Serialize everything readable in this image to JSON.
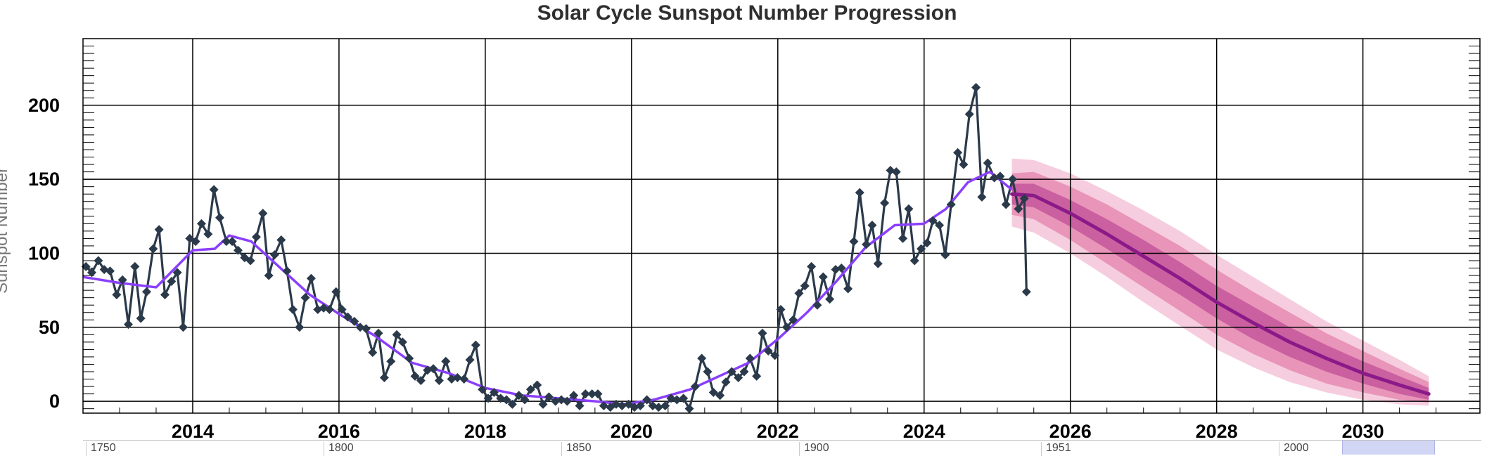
{
  "chart_data": {
    "type": "line",
    "title": "Solar Cycle Sunspot Number Progression",
    "xlabel": "",
    "ylabel": "Sunspot Number",
    "xlim": [
      2012.5,
      2031.6
    ],
    "ylim": [
      -8,
      245
    ],
    "x_ticks": [
      2014,
      2016,
      2018,
      2020,
      2022,
      2024,
      2026,
      2028,
      2030
    ],
    "y_ticks": [
      0,
      50,
      100,
      150,
      200
    ],
    "grid": true,
    "colors": {
      "monthly": "#2b3a4a",
      "smoothed": "#8a3ffc",
      "predicted": "#8b1a89",
      "band_inner": "#c4579a",
      "band_mid": "#e58bb3",
      "band_outer": "#f4c4d8",
      "navigator_window": "#d2d6f5"
    },
    "series": [
      {
        "values": [
          [
            2012.54,
            91
          ],
          [
            2012.62,
            87
          ],
          [
            2012.71,
            95
          ],
          [
            2012.79,
            89
          ],
          [
            2012.87,
            88
          ],
          [
            2012.96,
            72
          ],
          [
            2013.04,
            82
          ],
          [
            2013.12,
            52
          ],
          [
            2013.21,
            91
          ],
          [
            2013.29,
            56
          ],
          [
            2013.37,
            74
          ],
          [
            2013.46,
            103
          ],
          [
            2013.54,
            116
          ],
          [
            2013.62,
            72
          ],
          [
            2013.71,
            81
          ],
          [
            2013.79,
            87
          ],
          [
            2013.87,
            50
          ],
          [
            2013.96,
            110
          ],
          [
            2014.04,
            108
          ],
          [
            2014.12,
            120
          ],
          [
            2014.21,
            113
          ],
          [
            2014.29,
            143
          ],
          [
            2014.37,
            124
          ],
          [
            2014.46,
            108
          ],
          [
            2014.54,
            108
          ],
          [
            2014.62,
            102
          ],
          [
            2014.71,
            97
          ],
          [
            2014.79,
            95
          ],
          [
            2014.87,
            111
          ],
          [
            2014.96,
            127
          ],
          [
            2015.04,
            85
          ],
          [
            2015.12,
            99
          ],
          [
            2015.21,
            109
          ],
          [
            2015.29,
            88
          ],
          [
            2015.37,
            62
          ],
          [
            2015.46,
            50
          ],
          [
            2015.54,
            70
          ],
          [
            2015.62,
            83
          ],
          [
            2015.71,
            62
          ],
          [
            2015.79,
            63
          ],
          [
            2015.87,
            62
          ],
          [
            2015.96,
            74
          ],
          [
            2016.04,
            62
          ],
          [
            2016.12,
            57
          ],
          [
            2016.21,
            54
          ],
          [
            2016.29,
            50
          ],
          [
            2016.37,
            49
          ],
          [
            2016.46,
            33
          ],
          [
            2016.54,
            46
          ],
          [
            2016.62,
            16
          ],
          [
            2016.71,
            27
          ],
          [
            2016.79,
            45
          ],
          [
            2016.87,
            40
          ],
          [
            2016.96,
            29
          ],
          [
            2017.04,
            17
          ],
          [
            2017.12,
            14
          ],
          [
            2017.21,
            21
          ],
          [
            2017.29,
            22
          ],
          [
            2017.37,
            14
          ],
          [
            2017.46,
            27
          ],
          [
            2017.54,
            15
          ],
          [
            2017.62,
            16
          ],
          [
            2017.71,
            15
          ],
          [
            2017.79,
            28
          ],
          [
            2017.87,
            38
          ],
          [
            2017.96,
            8
          ],
          [
            2018.04,
            2
          ],
          [
            2018.12,
            6
          ],
          [
            2018.21,
            2
          ],
          [
            2018.29,
            1
          ],
          [
            2018.37,
            -2
          ],
          [
            2018.46,
            4
          ],
          [
            2018.54,
            1
          ],
          [
            2018.62,
            8
          ],
          [
            2018.71,
            11
          ],
          [
            2018.79,
            -2
          ],
          [
            2018.87,
            3
          ],
          [
            2018.96,
            0
          ],
          [
            2019.04,
            1
          ],
          [
            2019.12,
            0
          ],
          [
            2019.21,
            4
          ],
          [
            2019.29,
            -3
          ],
          [
            2019.37,
            5
          ],
          [
            2019.46,
            5
          ],
          [
            2019.54,
            5
          ],
          [
            2019.62,
            -3
          ],
          [
            2019.71,
            -4
          ],
          [
            2019.79,
            -2
          ],
          [
            2019.87,
            -3
          ],
          [
            2019.96,
            -2
          ],
          [
            2020.04,
            -4
          ],
          [
            2020.12,
            -3
          ],
          [
            2020.21,
            1
          ],
          [
            2020.29,
            -3
          ],
          [
            2020.37,
            -4
          ],
          [
            2020.46,
            -3
          ],
          [
            2020.54,
            2
          ],
          [
            2020.62,
            1
          ],
          [
            2020.71,
            2
          ],
          [
            2020.79,
            -5
          ],
          [
            2020.87,
            10
          ],
          [
            2020.96,
            29
          ],
          [
            2021.04,
            20
          ],
          [
            2021.12,
            6
          ],
          [
            2021.21,
            4
          ],
          [
            2021.29,
            13
          ],
          [
            2021.37,
            20
          ],
          [
            2021.46,
            16
          ],
          [
            2021.54,
            20
          ],
          [
            2021.62,
            29
          ],
          [
            2021.71,
            17
          ],
          [
            2021.79,
            46
          ],
          [
            2021.87,
            34
          ],
          [
            2021.96,
            31
          ],
          [
            2022.04,
            62
          ],
          [
            2022.12,
            50
          ],
          [
            2022.21,
            55
          ],
          [
            2022.29,
            73
          ],
          [
            2022.37,
            78
          ],
          [
            2022.46,
            91
          ],
          [
            2022.54,
            65
          ],
          [
            2022.62,
            84
          ],
          [
            2022.71,
            69
          ],
          [
            2022.79,
            89
          ],
          [
            2022.87,
            90
          ],
          [
            2022.96,
            76
          ],
          [
            2023.04,
            108
          ],
          [
            2023.12,
            141
          ],
          [
            2023.21,
            106
          ],
          [
            2023.29,
            119
          ],
          [
            2023.37,
            93
          ],
          [
            2023.46,
            134
          ],
          [
            2023.54,
            156
          ],
          [
            2023.62,
            155
          ],
          [
            2023.71,
            110
          ],
          [
            2023.79,
            130
          ],
          [
            2023.87,
            95
          ],
          [
            2023.96,
            103
          ],
          [
            2024.04,
            107
          ],
          [
            2024.12,
            122
          ],
          [
            2024.21,
            119
          ],
          [
            2024.29,
            99
          ],
          [
            2024.37,
            133
          ],
          [
            2024.46,
            168
          ],
          [
            2024.54,
            160
          ],
          [
            2024.62,
            194
          ],
          [
            2024.71,
            212
          ],
          [
            2024.79,
            138
          ],
          [
            2024.87,
            161
          ],
          [
            2024.96,
            151
          ],
          [
            2025.04,
            152
          ],
          [
            2025.12,
            133
          ],
          [
            2025.21,
            150
          ],
          [
            2025.29,
            130
          ],
          [
            2025.37,
            137
          ],
          [
            2025.4,
            74
          ]
        ]
      },
      {
        "values": [
          [
            2012.5,
            84
          ],
          [
            2013.0,
            80
          ],
          [
            2013.5,
            77
          ],
          [
            2014.0,
            102
          ],
          [
            2014.3,
            103
          ],
          [
            2014.5,
            112
          ],
          [
            2014.8,
            108
          ],
          [
            2015.2,
            90
          ],
          [
            2015.6,
            72
          ],
          [
            2016.0,
            59
          ],
          [
            2016.5,
            44
          ],
          [
            2017.0,
            26
          ],
          [
            2017.5,
            19
          ],
          [
            2018.0,
            9
          ],
          [
            2018.5,
            4
          ],
          [
            2019.0,
            2
          ],
          [
            2019.5,
            0
          ],
          [
            2019.9,
            -2
          ],
          [
            2020.3,
            1
          ],
          [
            2020.8,
            8
          ],
          [
            2021.2,
            17
          ],
          [
            2021.6,
            26
          ],
          [
            2022.0,
            42
          ],
          [
            2022.4,
            60
          ],
          [
            2022.8,
            81
          ],
          [
            2023.2,
            104
          ],
          [
            2023.6,
            119
          ],
          [
            2024.0,
            120
          ],
          [
            2024.3,
            130
          ],
          [
            2024.6,
            148
          ],
          [
            2024.9,
            155
          ],
          [
            2025.2,
            143
          ]
        ]
      },
      {
        "values": [
          [
            2025.2,
            140
          ],
          [
            2025.5,
            139
          ],
          [
            2026.0,
            127
          ],
          [
            2026.5,
            113
          ],
          [
            2027.0,
            98
          ],
          [
            2027.5,
            83
          ],
          [
            2028.0,
            67
          ],
          [
            2028.5,
            53
          ],
          [
            2029.0,
            40
          ],
          [
            2029.5,
            29
          ],
          [
            2030.0,
            19
          ],
          [
            2030.5,
            11
          ],
          [
            2030.9,
            5
          ]
        ]
      }
    ],
    "prediction_band": [
      {
        "x": 2025.2,
        "inner": [
          133,
          147
        ],
        "mid": [
          126,
          154
        ],
        "outer": [
          118,
          164
        ]
      },
      {
        "x": 2025.5,
        "inner": [
          131,
          147
        ],
        "mid": [
          123,
          155
        ],
        "outer": [
          114,
          163
        ]
      },
      {
        "x": 2026.0,
        "inner": [
          118,
          136
        ],
        "mid": [
          109,
          145
        ],
        "outer": [
          100,
          154
        ]
      },
      {
        "x": 2026.5,
        "inner": [
          103,
          123
        ],
        "mid": [
          93,
          133
        ],
        "outer": [
          84,
          142
        ]
      },
      {
        "x": 2027.0,
        "inner": [
          87,
          109
        ],
        "mid": [
          77,
          119
        ],
        "outer": [
          67,
          129
        ]
      },
      {
        "x": 2027.5,
        "inner": [
          72,
          94
        ],
        "mid": [
          61,
          105
        ],
        "outer": [
          51,
          115
        ]
      },
      {
        "x": 2028.0,
        "inner": [
          56,
          78
        ],
        "mid": [
          45,
          89
        ],
        "outer": [
          35,
          99
        ]
      },
      {
        "x": 2028.5,
        "inner": [
          42,
          64
        ],
        "mid": [
          32,
          74
        ],
        "outer": [
          23,
          84
        ]
      },
      {
        "x": 2029.0,
        "inner": [
          30,
          50
        ],
        "mid": [
          21,
          60
        ],
        "outer": [
          13,
          69
        ]
      },
      {
        "x": 2029.5,
        "inner": [
          20,
          38
        ],
        "mid": [
          12,
          46
        ],
        "outer": [
          6,
          54
        ]
      },
      {
        "x": 2030.0,
        "inner": [
          12,
          27
        ],
        "mid": [
          6,
          34
        ],
        "outer": [
          1,
          41
        ]
      },
      {
        "x": 2030.5,
        "inner": [
          5,
          17
        ],
        "mid": [
          1,
          22
        ],
        "outer": [
          -2,
          28
        ]
      },
      {
        "x": 2030.9,
        "inner": [
          1,
          9
        ],
        "mid": [
          -1,
          13
        ],
        "outer": [
          -3,
          17
        ]
      }
    ]
  },
  "navigator": {
    "labels": [
      "1750",
      "1800",
      "1850",
      "1900",
      "1951",
      "2000"
    ]
  }
}
